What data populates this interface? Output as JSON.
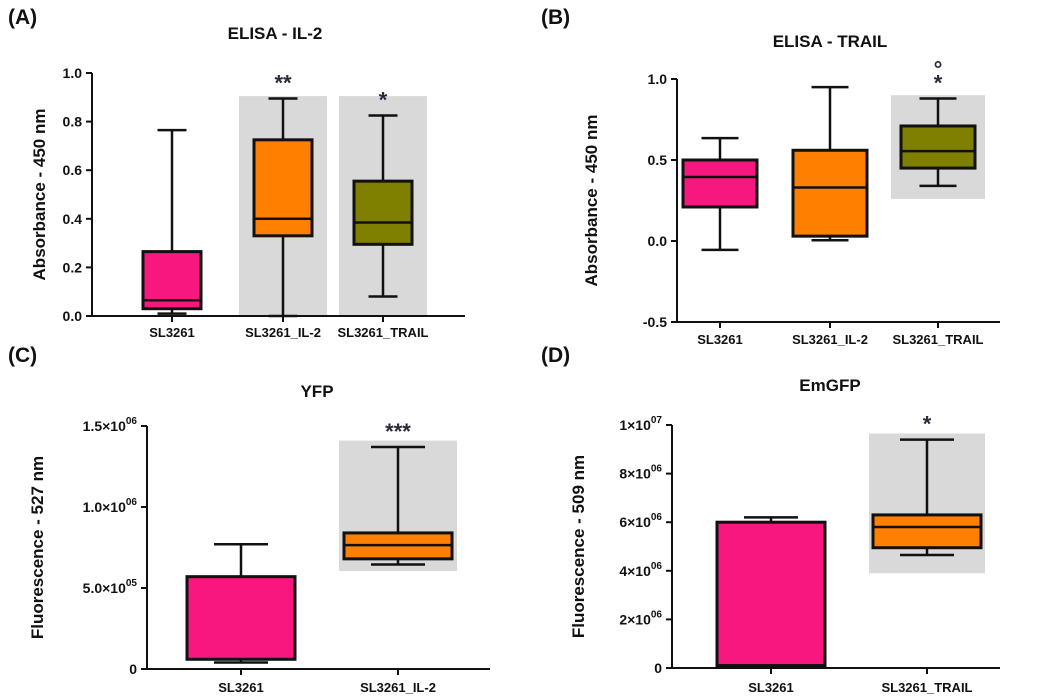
{
  "colors": {
    "shade": "#d9d9d9",
    "pink": "#f7177f",
    "orange": "#ff8000",
    "olive": "#7f7f00",
    "stroke": "#111111"
  },
  "chart_data": [
    {
      "panel_label": "(A)",
      "type": "box",
      "title": "ELISA - IL-2",
      "ylabel": "Absorbance - 450 nm",
      "ylim": [
        0,
        1.0
      ],
      "yticks": [
        {
          "value": 0,
          "label": "0.0"
        },
        {
          "value": 0.2,
          "label": "0.2"
        },
        {
          "value": 0.4,
          "label": "0.4"
        },
        {
          "value": 0.6,
          "label": "0.6"
        },
        {
          "value": 0.8,
          "label": "0.8"
        },
        {
          "value": 1.0,
          "label": "1.0"
        }
      ],
      "categories": [
        "SL3261",
        "SL3261_IL-2",
        "SL3261_TRAIL"
      ],
      "boxes": [
        {
          "category": "SL3261",
          "color": "pink",
          "min": 0.01,
          "q1": 0.03,
          "median": 0.065,
          "q3": 0.265,
          "max": 0.765,
          "shaded": false,
          "sig": ""
        },
        {
          "category": "SL3261_IL-2",
          "color": "orange",
          "min": 0.0,
          "q1": 0.33,
          "median": 0.4,
          "q3": 0.725,
          "max": 0.895,
          "shaded": true,
          "shade_range": [
            0,
            0.905
          ],
          "sig": "**"
        },
        {
          "category": "SL3261_TRAIL",
          "color": "olive",
          "min": 0.08,
          "q1": 0.295,
          "median": 0.385,
          "q3": 0.555,
          "max": 0.825,
          "shaded": true,
          "shade_range": [
            0,
            0.905
          ],
          "sig": "*"
        }
      ]
    },
    {
      "panel_label": "(B)",
      "type": "box",
      "title": "ELISA - TRAIL",
      "ylabel": "Absorbance - 450 nm",
      "ylim": [
        -0.5,
        1.0
      ],
      "yticks": [
        {
          "value": -0.5,
          "label": "-0.5"
        },
        {
          "value": 0,
          "label": "0.0"
        },
        {
          "value": 0.5,
          "label": "0.5"
        },
        {
          "value": 1.0,
          "label": "1.0"
        }
      ],
      "categories": [
        "SL3261",
        "SL3261_IL-2",
        "SL3261_TRAIL"
      ],
      "boxes": [
        {
          "category": "SL3261",
          "color": "pink",
          "min": -0.055,
          "q1": 0.21,
          "median": 0.395,
          "q3": 0.5,
          "max": 0.635,
          "shaded": false,
          "sig": ""
        },
        {
          "category": "SL3261_IL-2",
          "color": "orange",
          "min": 0.005,
          "q1": 0.03,
          "median": 0.33,
          "q3": 0.56,
          "max": 0.95,
          "shaded": false,
          "sig": ""
        },
        {
          "category": "SL3261_TRAIL",
          "color": "olive",
          "min": 0.34,
          "q1": 0.45,
          "median": 0.555,
          "q3": 0.71,
          "max": 0.88,
          "shaded": true,
          "shade_range": [
            0.26,
            0.9
          ],
          "sig": "*",
          "sig2": "°"
        }
      ]
    },
    {
      "panel_label": "(C)",
      "type": "box",
      "title": "YFP",
      "ylabel": "Fluorescence - 527 nm",
      "ylim": [
        0,
        1500000
      ],
      "yticks": [
        {
          "value": 0,
          "label": "0",
          "exp": ""
        },
        {
          "value": 500000,
          "label": "5.0×10",
          "exp": "05"
        },
        {
          "value": 1000000,
          "label": "1.0×10",
          "exp": "06"
        },
        {
          "value": 1500000,
          "label": "1.5×10",
          "exp": "06"
        }
      ],
      "categories": [
        "SL3261",
        "SL3261_IL-2"
      ],
      "boxes": [
        {
          "category": "SL3261",
          "color": "pink",
          "min": 40000,
          "q1": 60000,
          "median": 60000,
          "q3": 570000,
          "max": 770000,
          "shaded": false,
          "sig": ""
        },
        {
          "category": "SL3261_IL-2",
          "color": "orange",
          "min": 645000,
          "q1": 680000,
          "median": 765000,
          "q3": 840000,
          "max": 1370000,
          "shaded": true,
          "shade_range": [
            605000,
            1410000
          ],
          "sig": "***"
        }
      ]
    },
    {
      "panel_label": "(D)",
      "type": "box",
      "title": "EmGFP",
      "ylabel": "Fluorescence - 509 nm",
      "ylim": [
        0,
        10000000
      ],
      "yticks": [
        {
          "value": 0,
          "label": "0",
          "exp": ""
        },
        {
          "value": 2000000,
          "label": "2×10",
          "exp": "06"
        },
        {
          "value": 4000000,
          "label": "4×10",
          "exp": "06"
        },
        {
          "value": 6000000,
          "label": "6×10",
          "exp": "06"
        },
        {
          "value": 8000000,
          "label": "8×10",
          "exp": "06"
        },
        {
          "value": 10000000,
          "label": "1×10",
          "exp": "07"
        }
      ],
      "categories": [
        "SL3261",
        "SL3261_TRAIL"
      ],
      "boxes": [
        {
          "category": "SL3261",
          "color": "pink",
          "min": 50000,
          "q1": 100000,
          "median": 100000,
          "q3": 6000000,
          "max": 6200000,
          "shaded": false,
          "sig": ""
        },
        {
          "category": "SL3261_TRAIL",
          "color": "orange",
          "min": 4650000,
          "q1": 4950000,
          "median": 5800000,
          "q3": 6300000,
          "max": 9400000,
          "shaded": true,
          "shade_range": [
            3900000,
            9650000
          ],
          "sig": "*"
        }
      ]
    }
  ]
}
